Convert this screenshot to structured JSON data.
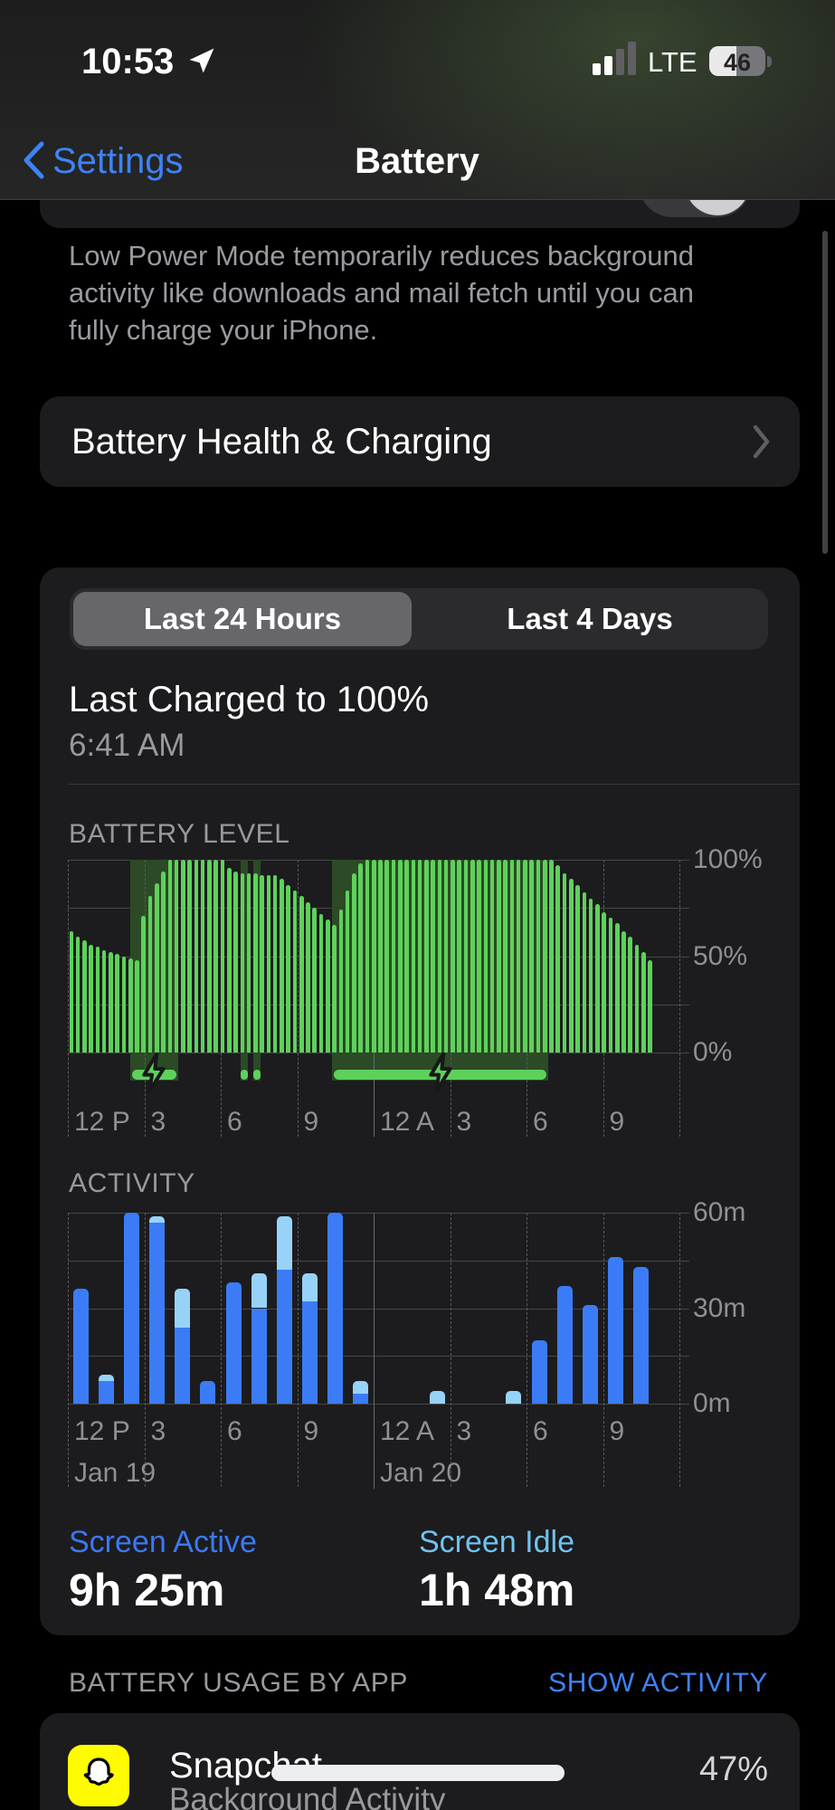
{
  "status_bar": {
    "time": "10:53",
    "network": "LTE",
    "battery_percent": "46"
  },
  "nav": {
    "back_label": "Settings",
    "title": "Battery"
  },
  "low_power_footer": {
    "lines": [
      "Low Power Mode temporarily reduces background",
      "activity like downloads and mail fetch until you can",
      "fully charge your iPhone."
    ]
  },
  "battery_health": {
    "label": "Battery Health & Charging"
  },
  "segmented": {
    "options": [
      "Last 24 Hours",
      "Last 4 Days"
    ],
    "selected": "Last 24 Hours"
  },
  "last_charged": {
    "title": "Last Charged to 100%",
    "time": "6:41 AM"
  },
  "usage_summary": {
    "screen_active_label": "Screen Active",
    "screen_active_value": "9h 25m",
    "screen_idle_label": "Screen Idle",
    "screen_idle_value": "1h 48m"
  },
  "usage_by_app": {
    "header": "BATTERY USAGE BY APP",
    "action": "SHOW ACTIVITY",
    "apps": [
      {
        "name": "Snapchat",
        "detail": "Background Activity",
        "percent": "47%",
        "icon": "snapchat-ghost-icon"
      }
    ]
  },
  "chart_data": [
    {
      "type": "bar",
      "title": "BATTERY LEVEL",
      "ylim": [
        0,
        100
      ],
      "interval_minutes": 15,
      "timespan_hours": 24,
      "grid": true,
      "legend": false,
      "y_ticks": [
        {
          "label": "100%",
          "value": 100
        },
        {
          "label": "50%",
          "value": 50
        },
        {
          "label": "0%",
          "value": 0
        }
      ],
      "x_ticks": [
        {
          "label": "12 P",
          "hour": 0
        },
        {
          "label": "3",
          "hour": 3
        },
        {
          "label": "6",
          "hour": 6
        },
        {
          "label": "9",
          "hour": 9
        },
        {
          "label": "12 A",
          "hour": 12
        },
        {
          "label": "3",
          "hour": 15
        },
        {
          "label": "6",
          "hour": 18
        },
        {
          "label": "9",
          "hour": 21
        }
      ],
      "values": [
        63,
        60,
        58,
        56,
        55,
        53,
        52,
        51,
        50,
        49,
        48,
        71,
        81,
        88,
        94,
        100,
        100,
        100,
        100,
        100,
        100,
        100,
        100,
        100,
        96,
        94,
        93,
        93,
        93,
        92,
        92,
        92,
        90,
        87,
        84,
        81,
        78,
        75,
        72,
        69,
        66,
        74,
        84,
        93,
        98,
        100,
        100,
        100,
        100,
        100,
        100,
        100,
        100,
        100,
        100,
        100,
        100,
        100,
        100,
        100,
        100,
        100,
        100,
        100,
        100,
        100,
        100,
        100,
        100,
        100,
        100,
        100,
        100,
        100,
        97,
        93,
        90,
        87,
        83,
        80,
        77,
        73,
        70,
        67,
        63,
        60,
        56,
        52,
        48
      ],
      "charging_periods": [
        {
          "start_hour": 2.45,
          "end_hour": 4.33,
          "bolt": true
        },
        {
          "start_hour": 6.78,
          "end_hour": 7.06,
          "bolt": false
        },
        {
          "start_hour": 7.28,
          "end_hour": 7.56,
          "bolt": false
        },
        {
          "start_hour": 10.37,
          "end_hour": 18.85,
          "bolt": true
        }
      ]
    },
    {
      "type": "bar",
      "title": "ACTIVITY",
      "ylim_minutes": [
        0,
        60
      ],
      "interval_minutes": 60,
      "timespan_hours": 24,
      "grid": true,
      "y_ticks": [
        {
          "label": "60m",
          "value": 60
        },
        {
          "label": "30m",
          "value": 30
        },
        {
          "label": "0m",
          "value": 0
        }
      ],
      "x_ticks": [
        {
          "label": "12 P",
          "hour": 0
        },
        {
          "label": "3",
          "hour": 3
        },
        {
          "label": "6",
          "hour": 6
        },
        {
          "label": "9",
          "hour": 9
        },
        {
          "label": "12 A",
          "hour": 12
        },
        {
          "label": "3",
          "hour": 15
        },
        {
          "label": "6",
          "hour": 18
        },
        {
          "label": "9",
          "hour": 21
        }
      ],
      "day_labels": [
        {
          "label": "Jan 19",
          "hour": 0
        },
        {
          "label": "Jan 20",
          "hour": 12
        }
      ],
      "series": [
        {
          "name": "screen-on",
          "values": [
            36,
            7,
            60,
            57,
            24,
            7,
            38,
            30,
            42,
            32,
            60,
            3,
            0,
            0,
            0,
            0,
            0,
            0,
            20,
            37,
            31,
            46,
            43
          ]
        },
        {
          "name": "screen-off",
          "values": [
            0,
            2,
            0,
            2,
            12,
            0,
            0,
            11,
            17,
            9,
            0,
            4,
            0,
            0,
            4,
            0,
            0,
            4,
            0,
            0,
            0,
            0,
            0
          ]
        }
      ]
    }
  ],
  "colors": {
    "accent_blue": "#3b7cf6",
    "light_blue": "#97d3f8",
    "green": "#5ed15b",
    "dark_green": "#2c4a26",
    "gray_label": "#98989d",
    "card_bg": "#1c1c1e",
    "selected_segment": "#66666b"
  }
}
